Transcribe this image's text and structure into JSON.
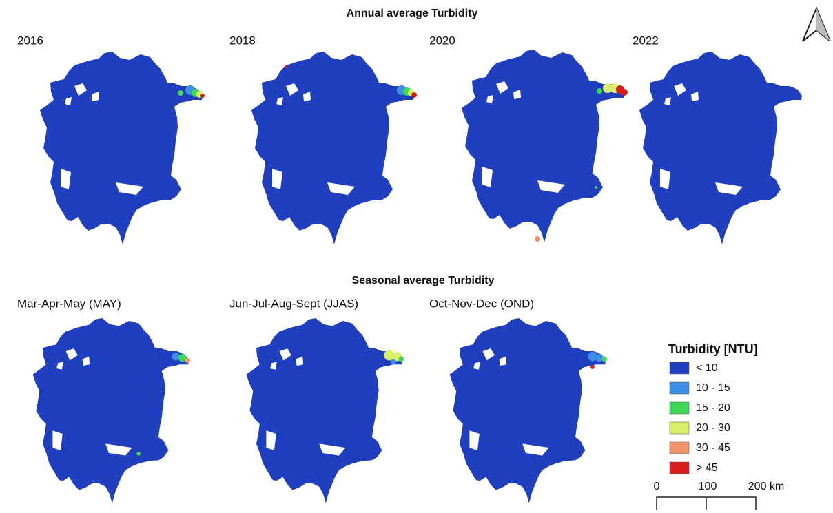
{
  "annual": {
    "title": "Annual average Turbidity",
    "panels": [
      "2016",
      "2018",
      "2020",
      "2022"
    ]
  },
  "seasonal": {
    "title": "Seasonal average Turbidity",
    "panels": [
      "Mar-Apr-May (MAY)",
      "Jun-Jul-Aug-Sept (JJAS)",
      "Oct-Nov-Dec (OND)"
    ]
  },
  "legend": {
    "title": "Turbidity [NTU]",
    "items": [
      {
        "label": "< 10",
        "color": "#1f3fbf"
      },
      {
        "label": "10 - 15",
        "color": "#3b8fe6"
      },
      {
        "label": "15 - 20",
        "color": "#3fd957"
      },
      {
        "label": "20 - 30",
        "color": "#dcef6a"
      },
      {
        "label": "30 - 45",
        "color": "#f0936a"
      },
      {
        "label": "> 45",
        "color": "#d81f1f"
      }
    ]
  },
  "scale_bar": {
    "labels": [
      "0",
      "100",
      "200 km"
    ]
  }
}
